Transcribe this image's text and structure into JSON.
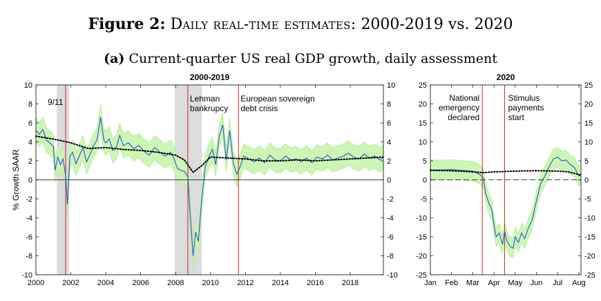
{
  "figure_title": {
    "bold": "Figure 2:",
    "smallcaps": "Daily real-time estimates:",
    "rest": "2000-2019 vs. 2020"
  },
  "subtitle": {
    "bold": "(a)",
    "text": "Current-quarter US real GDP growth, daily assessment"
  },
  "chart_data": [
    {
      "type": "line",
      "title": "2000-2019",
      "ylabel": "% Growth SAAR",
      "xlim": [
        2000,
        2019.9
      ],
      "ylim": [
        -10,
        10
      ],
      "x_ticks": [
        "2000",
        "2002",
        "2004",
        "2006",
        "2008",
        "2010",
        "2012",
        "2014",
        "2016",
        "2018"
      ],
      "x_tick_values": [
        2000,
        2002,
        2004,
        2006,
        2008,
        2010,
        2012,
        2014,
        2016,
        2018
      ],
      "y_ticks": [
        "10",
        "8",
        "6",
        "4",
        "2",
        "0",
        "-2",
        "-4",
        "-6",
        "-8",
        "-10"
      ],
      "y_tick_values": [
        10,
        8,
        6,
        4,
        2,
        0,
        -2,
        -4,
        -6,
        -8,
        -10
      ],
      "recession_bands": [
        [
          2001.2,
          2001.9
        ],
        [
          2007.95,
          2009.5
        ]
      ],
      "event_lines": [
        {
          "x": 2001.7,
          "label": [
            "9/11"
          ]
        },
        {
          "x": 2008.7,
          "label": [
            "Lehman",
            "bankrupcy"
          ]
        },
        {
          "x": 2011.6,
          "label": [
            "European sovereign",
            "debt crisis"
          ]
        }
      ],
      "series": [
        {
          "style": "blue solid",
          "color": "#2454d6",
          "x": [
            2000,
            2000.2,
            2000.4,
            2000.6,
            2000.8,
            2001.0,
            2001.1,
            2001.25,
            2001.4,
            2001.55,
            2001.7,
            2001.8,
            2001.95,
            2002.1,
            2002.3,
            2002.5,
            2002.7,
            2002.9,
            2003.1,
            2003.3,
            2003.5,
            2003.7,
            2003.9,
            2004.0,
            2004.2,
            2004.4,
            2004.6,
            2004.8,
            2005.0,
            2005.3,
            2005.6,
            2005.9,
            2006.2,
            2006.5,
            2006.8,
            2007.1,
            2007.4,
            2007.7,
            2007.9,
            2008.1,
            2008.3,
            2008.5,
            2008.7,
            2008.85,
            2009.0,
            2009.15,
            2009.3,
            2009.5,
            2009.7,
            2009.9,
            2010.1,
            2010.3,
            2010.5,
            2010.7,
            2010.9,
            2011.1,
            2011.3,
            2011.5,
            2011.7,
            2011.9,
            2012.2,
            2012.5,
            2012.8,
            2013.1,
            2013.4,
            2013.7,
            2014.0,
            2014.3,
            2014.6,
            2014.9,
            2015.2,
            2015.5,
            2015.8,
            2016.1,
            2016.4,
            2016.7,
            2017.0,
            2017.3,
            2017.6,
            2017.9,
            2018.2,
            2018.5,
            2018.8,
            2019.1,
            2019.4,
            2019.7,
            2019.9
          ],
          "y": [
            5.2,
            4.8,
            5.3,
            4.2,
            3.9,
            3.5,
            1.0,
            2.4,
            1.6,
            2.2,
            0.5,
            -2.6,
            2.5,
            2.9,
            1.7,
            2.6,
            3.4,
            1.9,
            2.7,
            3.6,
            4.2,
            6.6,
            4.1,
            3.9,
            4.3,
            3.1,
            3.4,
            4.7,
            3.6,
            3.9,
            3.3,
            3.6,
            3.0,
            2.6,
            3.4,
            2.9,
            2.5,
            2.9,
            2.3,
            1.2,
            1.0,
            0.9,
            0.3,
            -4.0,
            -8.0,
            -5.5,
            -6.5,
            -2.0,
            1.4,
            2.4,
            3.2,
            1.6,
            4.6,
            5.8,
            2.1,
            5.2,
            1.8,
            0.6,
            1.4,
            2.5,
            2.2,
            1.9,
            2.3,
            1.8,
            2.6,
            2.1,
            2.0,
            2.5,
            2.1,
            2.2,
            1.9,
            2.3,
            1.8,
            2.4,
            2.2,
            2.6,
            2.1,
            2.3,
            2.5,
            2.8,
            2.4,
            2.2,
            2.7,
            2.3,
            2.5,
            2.1,
            2.4
          ]
        },
        {
          "style": "black dotted",
          "color": "#000000",
          "x": [
            2000,
            2001.0,
            2002.0,
            2003.0,
            2004.0,
            2005.0,
            2006.0,
            2007.0,
            2008.0,
            2008.5,
            2009.0,
            2009.5,
            2010.0,
            2011.0,
            2012.0,
            2013.0,
            2014.0,
            2015.0,
            2016.0,
            2017.0,
            2018.0,
            2019.0,
            2019.9
          ],
          "y": [
            4.6,
            4.3,
            3.9,
            3.3,
            3.4,
            3.2,
            3.1,
            2.9,
            2.6,
            2.1,
            0.8,
            1.5,
            2.4,
            2.3,
            2.2,
            2.0,
            2.0,
            2.1,
            2.0,
            2.1,
            2.2,
            2.3,
            2.4
          ]
        }
      ]
    },
    {
      "type": "line",
      "title": "2020",
      "xlim": [
        0,
        7.1
      ],
      "ylim": [
        -25,
        25
      ],
      "x_ticks": [
        "Jan",
        "Feb",
        "Mar",
        "Apr",
        "May",
        "Jun",
        "Jul",
        "Aug"
      ],
      "x_tick_values": [
        0,
        1,
        2,
        3,
        4,
        5,
        6,
        7
      ],
      "y_ticks": [
        "25",
        "20",
        "15",
        "10",
        "5",
        "0",
        "-5",
        "-10",
        "-15",
        "-20",
        "-25"
      ],
      "y_tick_values": [
        25,
        20,
        15,
        10,
        5,
        0,
        -5,
        -10,
        -15,
        -20,
        -25
      ],
      "event_lines": [
        {
          "x": 2.45,
          "label": [
            "National",
            "emergency",
            "declared"
          ]
        },
        {
          "x": 3.5,
          "label": [
            "Stimulus",
            "payments",
            "start"
          ]
        }
      ],
      "series": [
        {
          "style": "blue solid",
          "color": "#2454d6",
          "x": [
            0,
            0.5,
            1.0,
            1.5,
            2.0,
            2.3,
            2.5,
            2.6,
            2.75,
            2.9,
            3.0,
            3.1,
            3.25,
            3.4,
            3.5,
            3.6,
            3.75,
            3.9,
            4.0,
            4.15,
            4.3,
            4.45,
            4.6,
            4.8,
            5.0,
            5.2,
            5.4,
            5.6,
            5.8,
            6.0,
            6.2,
            6.4,
            6.6,
            6.8,
            7.0,
            7.1
          ],
          "y": [
            2.6,
            2.6,
            2.7,
            2.5,
            2.3,
            1.5,
            0.5,
            -3.5,
            -6.0,
            -8.0,
            -12.0,
            -15.0,
            -14.0,
            -17.0,
            -13.5,
            -16.0,
            -17.5,
            -18.0,
            -15.0,
            -16.5,
            -14.0,
            -15.5,
            -13.0,
            -10.5,
            -5.5,
            -1.0,
            1.0,
            3.5,
            5.5,
            6.0,
            5.0,
            5.2,
            4.0,
            3.2,
            1.0,
            1.5
          ]
        },
        {
          "style": "black dotted",
          "color": "#000000",
          "x": [
            0,
            1.0,
            2.0,
            2.5,
            3.0,
            4.0,
            5.0,
            6.0,
            6.5,
            7.0,
            7.1
          ],
          "y": [
            2.5,
            2.4,
            2.1,
            1.9,
            2.1,
            2.3,
            2.4,
            2.3,
            2.1,
            1.4,
            1.2
          ]
        }
      ]
    }
  ]
}
